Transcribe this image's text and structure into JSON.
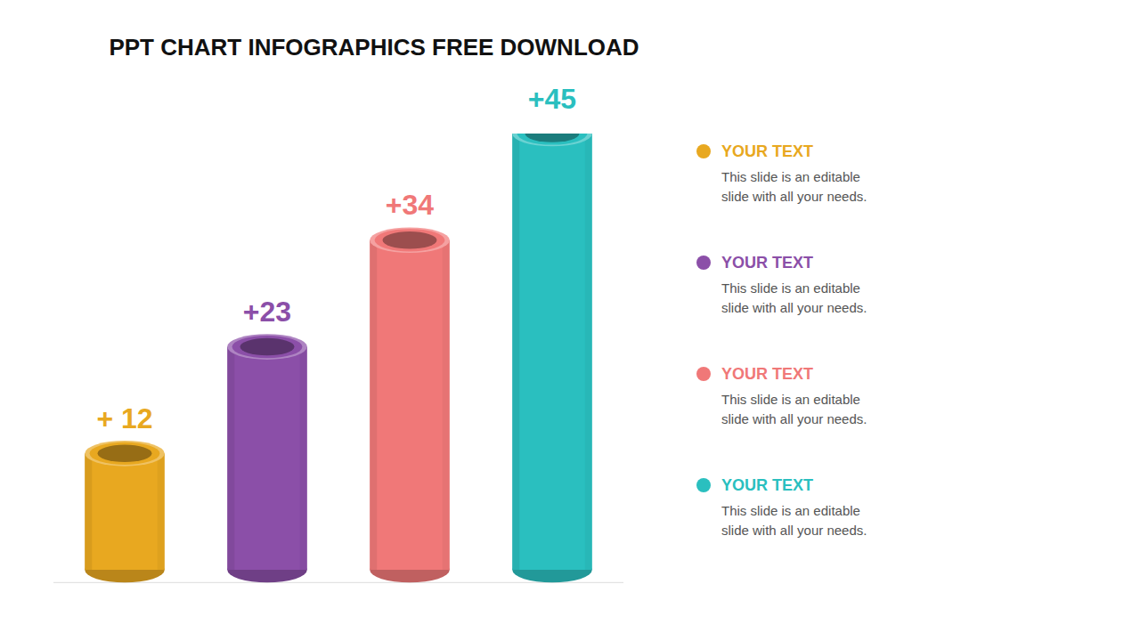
{
  "chart_data": {
    "type": "bar",
    "title": "PPT  CHART INFOGRAPHICS FREE DOWNLOAD",
    "categories": [
      "YOUR TEXT",
      "YOUR TEXT",
      "YOUR TEXT",
      "YOUR TEXT"
    ],
    "values": [
      12,
      23,
      34,
      45
    ],
    "value_labels": [
      "+ 12",
      "+23",
      "+34",
      "+45"
    ],
    "colors": [
      "#E8A820",
      "#8B4FA8",
      "#F07878",
      "#2ABFBF"
    ],
    "data_labels": true,
    "tick_labels": false,
    "legend": "right",
    "grid": false,
    "ylim": [
      0,
      45
    ],
    "annotations": [
      "This slide is an editable\nslide with all your needs.",
      "This slide is an editable\nslide with all your needs.",
      "This slide is an editable\nslide with all your needs.",
      "This slide is an editable\nslide with all your needs."
    ]
  }
}
